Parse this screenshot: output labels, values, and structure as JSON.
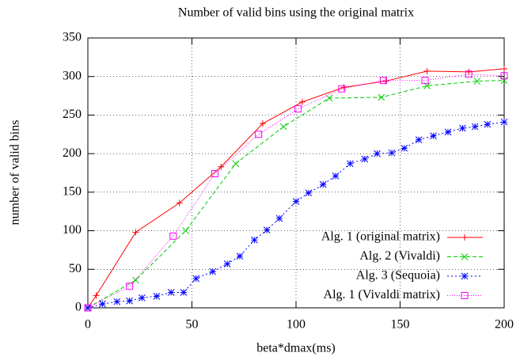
{
  "chart_data": {
    "type": "line",
    "title": "Number of valid bins using the original matrix",
    "xlabel": "beta*dmax(ms)",
    "ylabel": "number of valid bins",
    "xlim": [
      0,
      200
    ],
    "ylim": [
      0,
      350
    ],
    "xticks": [
      0,
      50,
      100,
      150,
      200
    ],
    "yticks": [
      0,
      50,
      100,
      150,
      200,
      250,
      300,
      350
    ],
    "grid": true,
    "legend": "lower right",
    "series": [
      {
        "name": "Alg. 1 (original matrix)",
        "color": "#ff0000",
        "marker": "plus",
        "dash": "",
        "x": [
          0,
          4,
          23,
          44,
          64,
          84,
          103,
          123,
          143,
          163,
          183,
          200
        ],
        "values": [
          0,
          16,
          98,
          136,
          183,
          239,
          267,
          286,
          294,
          307,
          306,
          310
        ]
      },
      {
        "name": "Alg. 2 (Vivaldi)",
        "color": "#00cc00",
        "marker": "cross",
        "dash": "5,3",
        "x": [
          0,
          23,
          47,
          71,
          94,
          116,
          141,
          163,
          187,
          200
        ],
        "values": [
          0,
          36,
          100,
          187,
          235,
          272,
          273,
          288,
          294,
          295
        ]
      },
      {
        "name": "Alg. 3 (Sequoia)",
        "color": "#0000ff",
        "marker": "star",
        "dash": "2,3",
        "x": [
          0,
          7,
          14,
          20,
          26,
          33,
          40,
          46,
          52,
          60,
          67,
          73,
          80,
          86,
          92,
          100,
          106,
          113,
          119,
          126,
          133,
          139,
          146,
          152,
          159,
          166,
          173,
          180,
          186,
          192,
          200
        ],
        "values": [
          0,
          5,
          8,
          9,
          13,
          15,
          20,
          20,
          38,
          47,
          57,
          67,
          88,
          101,
          116,
          138,
          149,
          160,
          171,
          187,
          193,
          200,
          201,
          207,
          218,
          223,
          228,
          233,
          235,
          238,
          241
        ]
      },
      {
        "name": "Alg. 1 (Vivaldi matrix)",
        "color": "#ff00ff",
        "marker": "square",
        "dash": "1,2",
        "x": [
          0,
          20,
          41,
          61,
          82,
          101,
          122,
          142,
          162,
          183,
          200
        ],
        "values": [
          0,
          28,
          93,
          174,
          225,
          258,
          284,
          295,
          295,
          303,
          301
        ]
      }
    ]
  }
}
